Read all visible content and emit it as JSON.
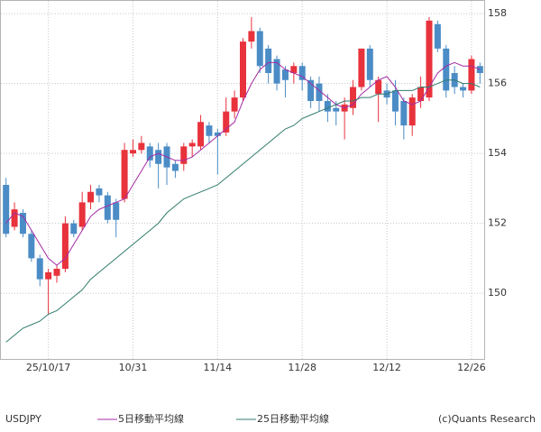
{
  "chart_data": {
    "type": "candlestick",
    "title": "USDJPY",
    "credit": "(c)Quants Research",
    "categories": [
      null,
      null,
      null,
      null,
      null,
      "25/10/17",
      null,
      null,
      null,
      null,
      null,
      null,
      null,
      null,
      null,
      "10/31",
      null,
      null,
      null,
      null,
      null,
      null,
      null,
      null,
      null,
      "11/14",
      null,
      null,
      null,
      null,
      null,
      null,
      null,
      null,
      null,
      "11/28",
      null,
      null,
      null,
      null,
      null,
      null,
      null,
      null,
      null,
      "12/12",
      null,
      null,
      null,
      null,
      null,
      null,
      null,
      null,
      null,
      "12/26",
      null
    ],
    "open": [
      153.1,
      151.9,
      152.3,
      151.7,
      151.0,
      150.4,
      150.5,
      150.7,
      152.0,
      151.9,
      152.6,
      153.0,
      152.8,
      152.6,
      152.7,
      154.0,
      154.1,
      154.2,
      154.1,
      154.2,
      153.7,
      153.7,
      154.2,
      154.2,
      154.8,
      154.6,
      154.6,
      155.2,
      155.6,
      157.2,
      157.5,
      157.0,
      156.7,
      156.4,
      156.3,
      156.5,
      156.1,
      156.0,
      155.5,
      155.3,
      155.2,
      155.3,
      155.9,
      157.0,
      155.7,
      155.8,
      155.8,
      155.5,
      154.8,
      155.5,
      155.6,
      157.7,
      157.0,
      156.3,
      155.9,
      155.8,
      156.5
    ],
    "high": [
      153.3,
      152.6,
      152.4,
      151.8,
      151.1,
      150.7,
      150.8,
      152.2,
      152.1,
      152.9,
      153.1,
      153.1,
      152.9,
      152.7,
      154.3,
      154.4,
      154.5,
      154.3,
      154.3,
      154.3,
      153.8,
      154.3,
      154.4,
      155.1,
      154.9,
      154.7,
      155.6,
      155.8,
      157.3,
      157.9,
      157.6,
      157.1,
      156.8,
      156.5,
      156.6,
      156.6,
      156.2,
      156.2,
      155.7,
      155.5,
      155.6,
      156.1,
      157.0,
      157.1,
      156.2,
      156.0,
      156.1,
      155.6,
      155.7,
      156.2,
      157.9,
      157.8,
      157.1,
      156.5,
      156.0,
      156.8,
      156.6
    ],
    "low": [
      151.6,
      151.8,
      151.6,
      150.9,
      150.2,
      149.4,
      150.3,
      150.6,
      151.6,
      151.8,
      152.4,
      152.6,
      152.0,
      151.6,
      152.6,
      153.9,
      154.0,
      153.6,
      153.0,
      153.1,
      153.3,
      153.5,
      153.9,
      154.1,
      154.3,
      153.4,
      154.5,
      155.0,
      155.5,
      157.0,
      156.3,
      156.0,
      155.8,
      155.6,
      156.0,
      155.8,
      155.3,
      155.2,
      154.9,
      154.8,
      154.4,
      155.1,
      155.8,
      155.9,
      154.9,
      155.4,
      154.8,
      154.4,
      154.5,
      155.3,
      155.5,
      156.9,
      155.6,
      155.7,
      155.6,
      155.7,
      156.0
    ],
    "close": [
      151.7,
      152.4,
      151.7,
      151.0,
      150.4,
      150.6,
      150.7,
      152.0,
      151.7,
      152.6,
      152.9,
      152.8,
      152.1,
      152.1,
      154.1,
      154.1,
      154.3,
      153.8,
      153.7,
      153.6,
      153.5,
      154.2,
      154.3,
      154.9,
      154.5,
      154.5,
      155.2,
      155.6,
      157.2,
      157.5,
      156.5,
      156.3,
      156.0,
      156.1,
      156.5,
      156.1,
      155.5,
      155.5,
      155.2,
      155.2,
      155.4,
      155.9,
      157.0,
      156.1,
      156.1,
      155.6,
      155.2,
      154.8,
      155.6,
      155.9,
      157.8,
      157.0,
      155.8,
      155.9,
      155.8,
      156.7,
      156.3
    ],
    "up_color": "#e8323c",
    "down_color": "#4b8cc6",
    "series": [
      {
        "name": "5日移動平均線",
        "color": "#a42aa4",
        "values": [
          152.0,
          152.3,
          152.2,
          151.8,
          151.4,
          151.0,
          150.8,
          151.0,
          151.4,
          151.8,
          152.2,
          152.4,
          152.5,
          152.6,
          152.7,
          153.1,
          153.5,
          153.9,
          154.0,
          153.9,
          153.8,
          153.8,
          153.9,
          154.1,
          154.3,
          154.5,
          154.7,
          154.9,
          155.5,
          156.0,
          156.4,
          156.6,
          156.6,
          156.4,
          156.3,
          156.2,
          156.0,
          155.8,
          155.6,
          155.4,
          155.3,
          155.4,
          155.7,
          155.9,
          156.1,
          156.2,
          155.9,
          155.5,
          155.4,
          155.5,
          155.9,
          156.3,
          156.5,
          156.6,
          156.5,
          156.5,
          156.4
        ]
      },
      {
        "name": "25日移動平均線",
        "color": "#2f7b6c",
        "values": [
          148.6,
          148.8,
          149.0,
          149.1,
          149.2,
          149.4,
          149.5,
          149.7,
          149.9,
          150.1,
          150.4,
          150.6,
          150.8,
          151.0,
          151.2,
          151.4,
          151.6,
          151.8,
          152.0,
          152.3,
          152.5,
          152.7,
          152.8,
          152.9,
          153.0,
          153.1,
          153.3,
          153.5,
          153.7,
          153.9,
          154.1,
          154.3,
          154.5,
          154.7,
          154.8,
          155.0,
          155.1,
          155.2,
          155.3,
          155.4,
          155.5,
          155.5,
          155.6,
          155.6,
          155.7,
          155.7,
          155.8,
          155.8,
          155.8,
          155.9,
          155.9,
          156.0,
          156.1,
          156.1,
          156.0,
          156.0,
          155.9
        ]
      }
    ],
    "ylim": [
      148.12,
      158.39
    ],
    "yticks": [
      150,
      152,
      154,
      156,
      158
    ],
    "grid": true
  }
}
